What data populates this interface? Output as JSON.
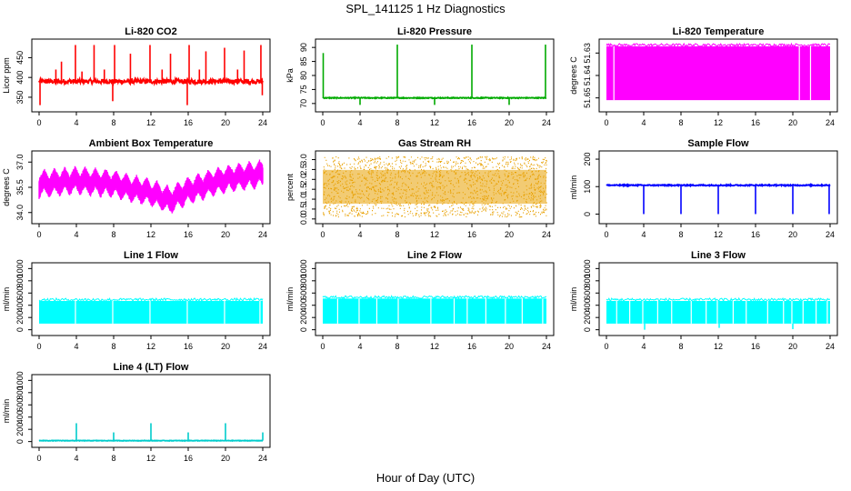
{
  "figure": {
    "title": "SPL_141125  1 Hz Diagnostics",
    "xlabel": "Hour of Day (UTC)"
  },
  "chart_data": [
    {
      "type": "line",
      "title": "Li-820 CO2",
      "ylabel": "Licor ppm",
      "color": "#ff0000",
      "xlim": [
        0,
        24
      ],
      "xticks": [
        0,
        4,
        8,
        12,
        16,
        20,
        24
      ],
      "ylim": [
        320,
        490
      ],
      "yticks": [
        350,
        400,
        450
      ],
      "ytick_labels": [
        "350",
        "400",
        "450"
      ],
      "baseline": 390,
      "noise": 6,
      "spikes": [
        {
          "x": 0.1,
          "y": 330
        },
        {
          "x": 1.8,
          "y": 420
        },
        {
          "x": 2.4,
          "y": 440
        },
        {
          "x": 3.9,
          "y": 482
        },
        {
          "x": 4.6,
          "y": 415
        },
        {
          "x": 5.9,
          "y": 482
        },
        {
          "x": 7.0,
          "y": 420
        },
        {
          "x": 7.9,
          "y": 340
        },
        {
          "x": 8.1,
          "y": 482
        },
        {
          "x": 9.8,
          "y": 460
        },
        {
          "x": 11.9,
          "y": 482
        },
        {
          "x": 13.2,
          "y": 420
        },
        {
          "x": 14.1,
          "y": 460
        },
        {
          "x": 15.9,
          "y": 330
        },
        {
          "x": 16.1,
          "y": 482
        },
        {
          "x": 17.2,
          "y": 420
        },
        {
          "x": 17.9,
          "y": 466
        },
        {
          "x": 19.9,
          "y": 475
        },
        {
          "x": 21.3,
          "y": 420
        },
        {
          "x": 22.0,
          "y": 468
        },
        {
          "x": 23.8,
          "y": 482
        },
        {
          "x": 23.95,
          "y": 355
        }
      ]
    },
    {
      "type": "line",
      "title": "Li-820 Pressure",
      "ylabel": "kPa",
      "color": "#00aa00",
      "xlim": [
        0,
        24
      ],
      "xticks": [
        0,
        4,
        8,
        12,
        16,
        20,
        24
      ],
      "ylim": [
        68,
        92
      ],
      "yticks": [
        70,
        75,
        80,
        85,
        90
      ],
      "ytick_labels": [
        "70",
        "75",
        "80",
        "85",
        "90"
      ],
      "baseline": 72,
      "noise": 0.15,
      "spikes": [
        {
          "x": 0.05,
          "y": 88
        },
        {
          "x": 4.0,
          "y": 69.5
        },
        {
          "x": 8.0,
          "y": 91
        },
        {
          "x": 12.0,
          "y": 69.5
        },
        {
          "x": 16.0,
          "y": 91
        },
        {
          "x": 20.0,
          "y": 69.5
        },
        {
          "x": 23.9,
          "y": 91
        }
      ]
    },
    {
      "type": "area",
      "title": "Li-820 Temperature",
      "ylabel": "degrees C",
      "color": "#ff00ff",
      "xlim": [
        0,
        24
      ],
      "xticks": [
        0,
        4,
        8,
        12,
        16,
        20,
        24
      ],
      "ylim": [
        51.6475,
        51.6325
      ],
      "yticks": [
        51.645,
        51.64,
        51.635
      ],
      "ytick_labels": [
        "51.65",
        "51.64",
        "51.63"
      ],
      "band": [
        51.6455,
        51.6335
      ],
      "gaps": [
        0.8,
        20.7,
        21.9
      ]
    },
    {
      "type": "line",
      "title": "Ambient Box Temperature",
      "ylabel": "degrees C",
      "color": "#ff00ff",
      "xlim": [
        0,
        24
      ],
      "xticks": [
        0,
        4,
        8,
        12,
        16,
        20,
        24
      ],
      "ylim": [
        33.5,
        37.5
      ],
      "yticks": [
        34.0,
        35.5,
        37.0
      ],
      "ytick_labels": [
        "34.0",
        "35.5",
        "37.0"
      ],
      "center": [
        {
          "x": 0,
          "y": 35.7
        },
        {
          "x": 4,
          "y": 35.9
        },
        {
          "x": 8,
          "y": 35.7
        },
        {
          "x": 10,
          "y": 35.4
        },
        {
          "x": 12,
          "y": 35.2
        },
        {
          "x": 14,
          "y": 34.7
        },
        {
          "x": 16,
          "y": 35.3
        },
        {
          "x": 20,
          "y": 36.0
        },
        {
          "x": 24,
          "y": 36.3
        }
      ],
      "amplitude": 0.75,
      "period": 1.1
    },
    {
      "type": "scatter",
      "title": "Gas Stream RH",
      "ylabel": "percent",
      "color": "#e8a000",
      "xlim": [
        0,
        24
      ],
      "xticks": [
        0,
        4,
        8,
        12,
        16,
        20,
        24
      ],
      "ylim": [
        -0.1,
        3.3
      ],
      "yticks": [
        0.0,
        0.5,
        1.0,
        1.5,
        2.0,
        2.5,
        3.0
      ],
      "ytick_labels": [
        "0.0",
        "0.5",
        "1.0",
        "1.5",
        "2.0",
        "2.5",
        "3.0"
      ],
      "range": [
        0.1,
        3.15
      ]
    },
    {
      "type": "line",
      "title": "Sample Flow",
      "ylabel": "ml/min",
      "color": "#0000ff",
      "xlim": [
        0,
        24
      ],
      "xticks": [
        0,
        4,
        8,
        12,
        16,
        20,
        24
      ],
      "ylim": [
        -25,
        220
      ],
      "yticks": [
        0,
        100,
        200
      ],
      "ytick_labels": [
        "0",
        "100",
        "200"
      ],
      "baseline": 105,
      "noise": 2,
      "spikes": [
        {
          "x": 4.0,
          "y": 0
        },
        {
          "x": 8.0,
          "y": 0
        },
        {
          "x": 12.0,
          "y": 0
        },
        {
          "x": 16.0,
          "y": 0
        },
        {
          "x": 20.0,
          "y": 0
        },
        {
          "x": 23.9,
          "y": 0
        }
      ]
    },
    {
      "type": "area",
      "title": "Line 1 Flow",
      "ylabel": "ml/min",
      "color": "#00ffff",
      "xlim": [
        0,
        24
      ],
      "xticks": [
        0,
        4,
        8,
        12,
        16,
        20,
        24
      ],
      "ylim": [
        -50,
        1050
      ],
      "yticks": [
        0,
        200,
        400,
        600,
        800,
        1000
      ],
      "ytick_labels": [
        "0",
        "200",
        "400",
        "600",
        "800",
        "1000"
      ],
      "band": [
        100,
        470
      ],
      "gaps": [
        3.9,
        7.9,
        11.9,
        15.9,
        19.9,
        23.7
      ]
    },
    {
      "type": "area",
      "title": "Line 2 Flow",
      "ylabel": "ml/min",
      "color": "#00ffff",
      "xlim": [
        0,
        24
      ],
      "xticks": [
        0,
        4,
        8,
        12,
        16,
        20,
        24
      ],
      "ylim": [
        -50,
        1050
      ],
      "yticks": [
        0,
        200,
        400,
        600,
        800,
        1000
      ],
      "ytick_labels": [
        "0",
        "200",
        "400",
        "600",
        "800",
        "1000"
      ],
      "band": [
        100,
        510
      ],
      "gaps": [
        1.6,
        3.9,
        5.8,
        8.1,
        11.6,
        14.1,
        15.5,
        17.5,
        19.6,
        21.4,
        23.6
      ]
    },
    {
      "type": "area",
      "title": "Line 3 Flow",
      "ylabel": "ml/min",
      "color": "#00ffff",
      "xlim": [
        0,
        24
      ],
      "xticks": [
        0,
        4,
        8,
        12,
        16,
        20,
        24
      ],
      "ylim": [
        -50,
        1050
      ],
      "yticks": [
        0,
        200,
        400,
        600,
        800,
        1000
      ],
      "ytick_labels": [
        "0",
        "200",
        "400",
        "600",
        "800",
        "1000"
      ],
      "band": [
        100,
        470
      ],
      "gaps": [
        1.1,
        2.5,
        3.9,
        5.5,
        7.0,
        9.1,
        10.7,
        11.9,
        13.6,
        15.0,
        17.3,
        19.0,
        19.9,
        21.1,
        22.5,
        23.7
      ],
      "dips": [
        {
          "x": 4.1,
          "y": 0
        },
        {
          "x": 12.1,
          "y": 30
        },
        {
          "x": 20.0,
          "y": 10
        }
      ]
    },
    {
      "type": "line",
      "title": "Line 4 (LT) Flow",
      "ylabel": "ml/min",
      "color": "#00cccc",
      "xlim": [
        0,
        24
      ],
      "xticks": [
        0,
        4,
        8,
        12,
        16,
        20,
        24
      ],
      "ylim": [
        -50,
        1050
      ],
      "yticks": [
        0,
        200,
        400,
        600,
        800,
        1000
      ],
      "ytick_labels": [
        "0",
        "200",
        "400",
        "600",
        "800",
        "1000"
      ],
      "baseline": 15,
      "noise": 4,
      "spikes": [
        {
          "x": 4.0,
          "y": 300
        },
        {
          "x": 8.0,
          "y": 150
        },
        {
          "x": 12.0,
          "y": 300
        },
        {
          "x": 16.0,
          "y": 150
        },
        {
          "x": 20.0,
          "y": 300
        },
        {
          "x": 24.0,
          "y": 150
        }
      ]
    }
  ]
}
